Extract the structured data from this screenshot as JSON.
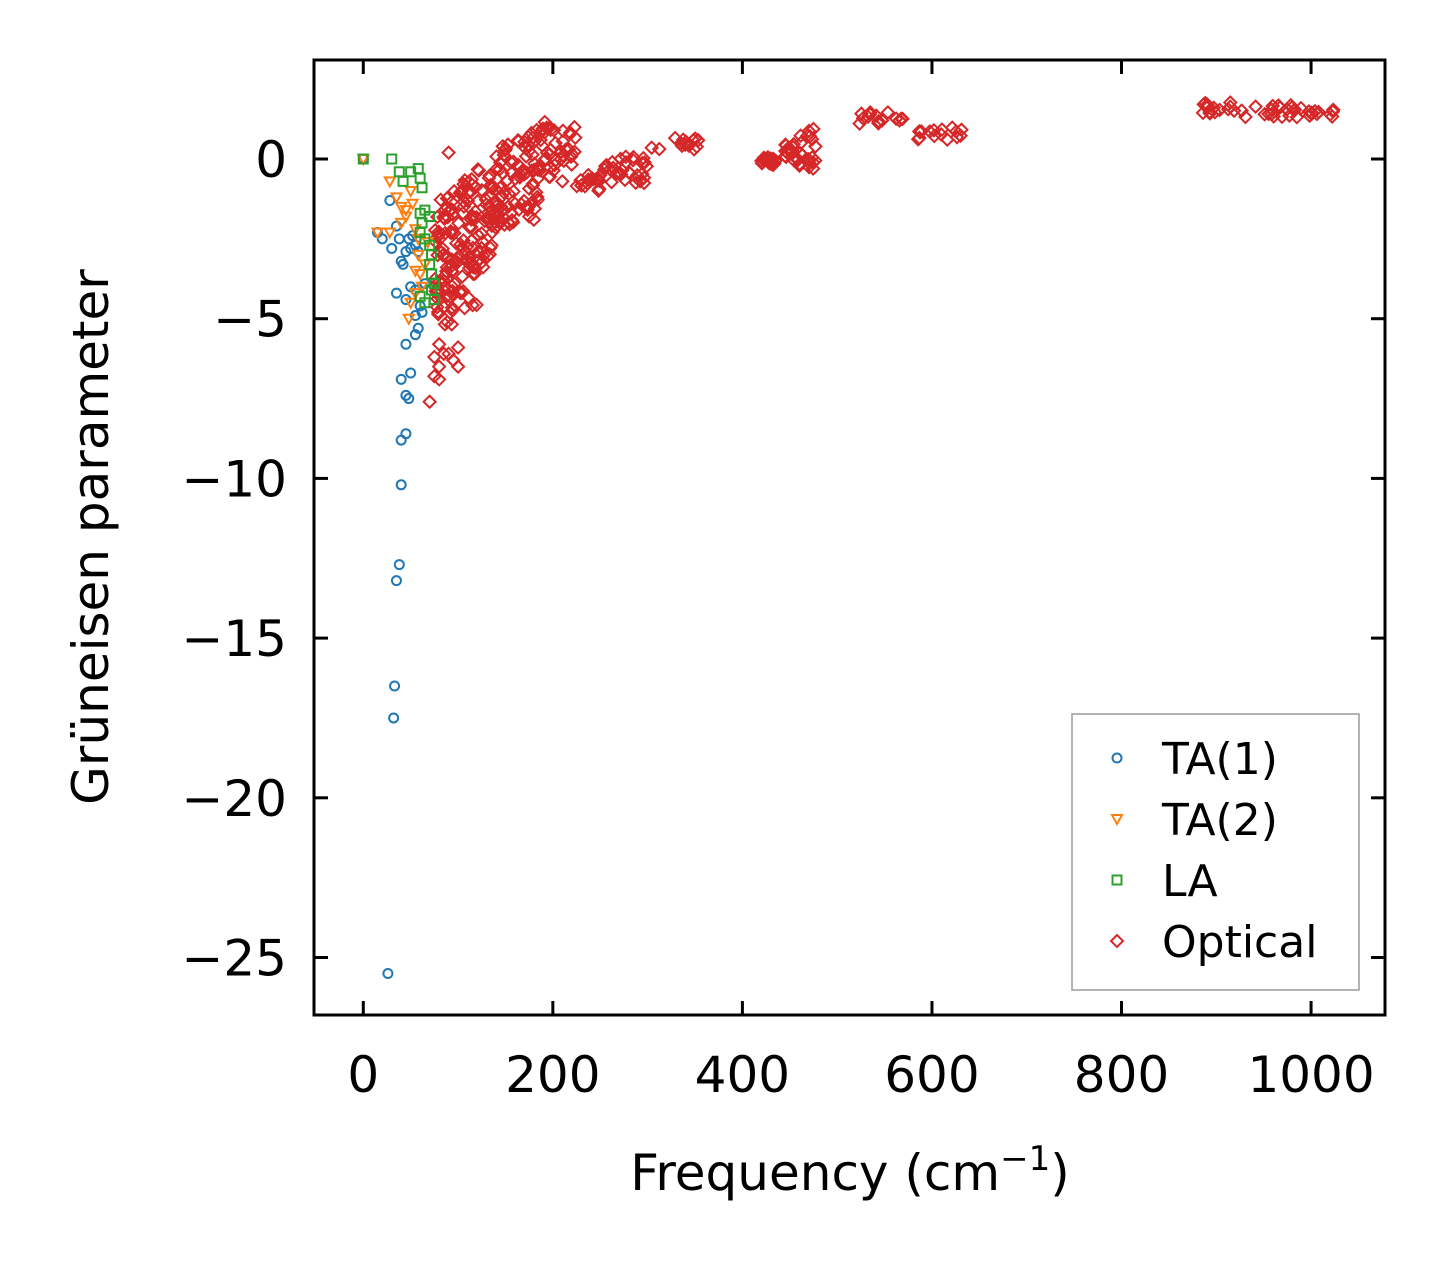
{
  "chart_data": {
    "type": "scatter",
    "title": "",
    "xlabel": "Frequency (cm",
    "xlabel_sup": "−1",
    "xlabel_close": ")",
    "ylabel": "Grüneisen parameter",
    "xlim": [
      -52,
      1078
    ],
    "ylim": [
      -26.8,
      3.1
    ],
    "xticks": [
      0,
      200,
      400,
      600,
      800,
      1000
    ],
    "yticks": [
      0,
      -5,
      -10,
      -15,
      -20,
      -25
    ],
    "xtick_labels": [
      "0",
      "200",
      "400",
      "600",
      "800",
      "1000"
    ],
    "ytick_labels": [
      "0",
      "−5",
      "−10",
      "−15",
      "−20",
      "−25"
    ],
    "legend_position": "bottom-right",
    "series": [
      {
        "name": "TA(1)",
        "marker": "circle",
        "color": "#1f77b4",
        "points": [
          [
            0,
            0
          ],
          [
            15,
            -2.3
          ],
          [
            20,
            -2.5
          ],
          [
            28,
            -1.3
          ],
          [
            30,
            -2.8
          ],
          [
            35,
            -2.1
          ],
          [
            38,
            -2.5
          ],
          [
            40,
            -3.2
          ],
          [
            42,
            -3.3
          ],
          [
            45,
            -2.9
          ],
          [
            48,
            -2.5
          ],
          [
            50,
            -2.8
          ],
          [
            52,
            -2.4
          ],
          [
            55,
            -2.7
          ],
          [
            58,
            -2.9
          ],
          [
            50,
            -4.0
          ],
          [
            55,
            -4.1
          ],
          [
            45,
            -4.4
          ],
          [
            60,
            -4.6
          ],
          [
            55,
            -4.9
          ],
          [
            58,
            -5.3
          ],
          [
            55,
            -5.5
          ],
          [
            45,
            -5.8
          ],
          [
            50,
            -6.7
          ],
          [
            40,
            -6.9
          ],
          [
            45,
            -7.4
          ],
          [
            48,
            -7.5
          ],
          [
            45,
            -8.6
          ],
          [
            40,
            -8.8
          ],
          [
            40,
            -10.2
          ],
          [
            38,
            -12.7
          ],
          [
            35,
            -13.2
          ],
          [
            33,
            -16.5
          ],
          [
            32,
            -17.5
          ],
          [
            26,
            -25.5
          ],
          [
            35,
            -4.2
          ],
          [
            62,
            -4.8
          ],
          [
            65,
            -3.9
          ]
        ]
      },
      {
        "name": "TA(2)",
        "marker": "triangle-down",
        "color": "#ff7f0e",
        "points": [
          [
            0,
            0
          ],
          [
            15,
            -2.3
          ],
          [
            28,
            -2.3
          ],
          [
            28,
            -0.7
          ],
          [
            35,
            -1.2
          ],
          [
            40,
            -1.5
          ],
          [
            45,
            -1.8
          ],
          [
            50,
            -1.0
          ],
          [
            52,
            -1.4
          ],
          [
            55,
            -2.2
          ],
          [
            58,
            -3.0
          ],
          [
            55,
            -3.5
          ],
          [
            60,
            -3.6
          ],
          [
            62,
            -4.0
          ],
          [
            50,
            -4.5
          ],
          [
            55,
            -4.2
          ],
          [
            48,
            -5.0
          ],
          [
            65,
            -3.3
          ],
          [
            68,
            -2.6
          ],
          [
            45,
            -1.6
          ],
          [
            40,
            -2.0
          ],
          [
            58,
            -2.5
          ]
        ]
      },
      {
        "name": "LA",
        "marker": "square",
        "color": "#2ca02c",
        "points": [
          [
            0,
            0
          ],
          [
            30,
            0
          ],
          [
            38,
            -0.4
          ],
          [
            42,
            -0.7
          ],
          [
            50,
            -0.4
          ],
          [
            58,
            -0.3
          ],
          [
            60,
            -0.6
          ],
          [
            62,
            -0.9
          ],
          [
            60,
            -1.7
          ],
          [
            62,
            -2.0
          ],
          [
            65,
            -1.6
          ],
          [
            70,
            -1.8
          ],
          [
            60,
            -2.3
          ],
          [
            65,
            -2.5
          ],
          [
            70,
            -2.7
          ],
          [
            72,
            -3.0
          ],
          [
            70,
            -3.3
          ],
          [
            72,
            -3.6
          ],
          [
            75,
            -3.9
          ],
          [
            72,
            -4.1
          ],
          [
            75,
            -4.4
          ],
          [
            60,
            -4.3
          ],
          [
            65,
            -4.5
          ]
        ]
      }
    ],
    "optical": {
      "name": "Optical",
      "marker": "diamond",
      "color": "#d62728",
      "segments": [
        {
          "x0": 75,
          "x1": 80,
          "y_top": -1.8,
          "y_bot": -5.5
        },
        {
          "x0": 80,
          "x1": 100,
          "y_top": -1.0,
          "y_bot": -5.2
        },
        {
          "x0": 100,
          "x1": 120,
          "y_top": -0.6,
          "y_bot": -4.7
        },
        {
          "x0": 120,
          "x1": 140,
          "y_top": -0.3,
          "y_bot": -3.4
        },
        {
          "x0": 140,
          "x1": 160,
          "y_top": 0.5,
          "y_bot": -2.2
        },
        {
          "x0": 160,
          "x1": 185,
          "y_top": 1.0,
          "y_bot": -1.6
        },
        {
          "x0": 185,
          "x1": 205,
          "y_top": 1.2,
          "y_bot": -0.6
        },
        {
          "x0": 205,
          "x1": 225,
          "y_top": 1.0,
          "y_bot": -0.2
        },
        {
          "x0": 225,
          "x1": 250,
          "y_top": -0.5,
          "y_bot": -1.0
        },
        {
          "x0": 250,
          "x1": 300,
          "y_top": 0.1,
          "y_bot": -0.8
        },
        {
          "x0": 300,
          "x1": 355,
          "y_top": 0.7,
          "y_bot": 0.3
        },
        {
          "x0": 420,
          "x1": 445,
          "y_top": 0.1,
          "y_bot": -0.2
        },
        {
          "x0": 445,
          "x1": 460,
          "y_top": 0.5,
          "y_bot": -0.1
        },
        {
          "x0": 460,
          "x1": 480,
          "y_top": 1.1,
          "y_bot": -0.3
        },
        {
          "x0": 520,
          "x1": 570,
          "y_top": 1.5,
          "y_bot": 1.1
        },
        {
          "x0": 575,
          "x1": 635,
          "y_top": 1.0,
          "y_bot": 0.6
        },
        {
          "x0": 885,
          "x1": 930,
          "y_top": 1.8,
          "y_bot": 1.4
        },
        {
          "x0": 930,
          "x1": 980,
          "y_top": 1.7,
          "y_bot": 1.3
        },
        {
          "x0": 980,
          "x1": 1025,
          "y_top": 1.6,
          "y_bot": 1.3
        }
      ],
      "outliers": [
        [
          90,
          0.2
        ],
        [
          80,
          -5.8
        ],
        [
          85,
          -6.1
        ],
        [
          75,
          -6.2
        ],
        [
          80,
          -6.5
        ],
        [
          75,
          -6.8
        ],
        [
          80,
          -6.9
        ],
        [
          70,
          -7.6
        ],
        [
          100,
          -5.9
        ],
        [
          95,
          -6.3
        ],
        [
          100,
          -6.5
        ],
        [
          90,
          -6.1
        ],
        [
          160,
          -1.4
        ],
        [
          175,
          -1.8
        ],
        [
          180,
          -1.9
        ],
        [
          210,
          -0.7
        ],
        [
          135,
          -1.8
        ]
      ]
    }
  }
}
